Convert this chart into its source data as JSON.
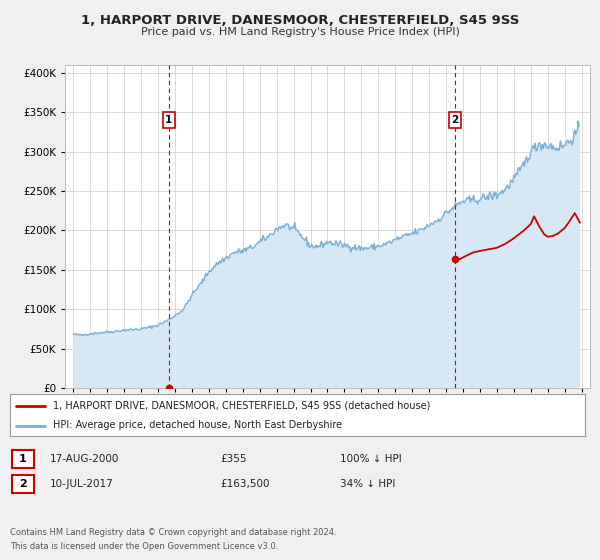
{
  "title": "1, HARPORT DRIVE, DANESMOOR, CHESTERFIELD, S45 9SS",
  "subtitle": "Price paid vs. HM Land Registry's House Price Index (HPI)",
  "background_color": "#f0f0f0",
  "plot_bg_color": "#ffffff",
  "hpi_line_color": "#7bafd4",
  "hpi_fill_color": "#d6e8f5",
  "property_color": "#cc0000",
  "marker1_date_x": 2000.63,
  "marker1_price": 355,
  "marker1_label": "17-AUG-2000",
  "marker1_price_label": "£355",
  "marker1_hpi_label": "100% ↓ HPI",
  "marker2_date_x": 2017.52,
  "marker2_price": 163500,
  "marker2_label": "10-JUL-2017",
  "marker2_price_label": "£163,500",
  "marker2_hpi_label": "34% ↓ HPI",
  "ylim": [
    0,
    410000
  ],
  "xlim_start": 1994.5,
  "xlim_end": 2025.5,
  "legend_line1": "1, HARPORT DRIVE, DANESMOOR, CHESTERFIELD, S45 9SS (detached house)",
  "legend_line2": "HPI: Average price, detached house, North East Derbyshire",
  "footnote1": "Contains HM Land Registry data © Crown copyright and database right 2024.",
  "footnote2": "This data is licensed under the Open Government Licence v3.0."
}
